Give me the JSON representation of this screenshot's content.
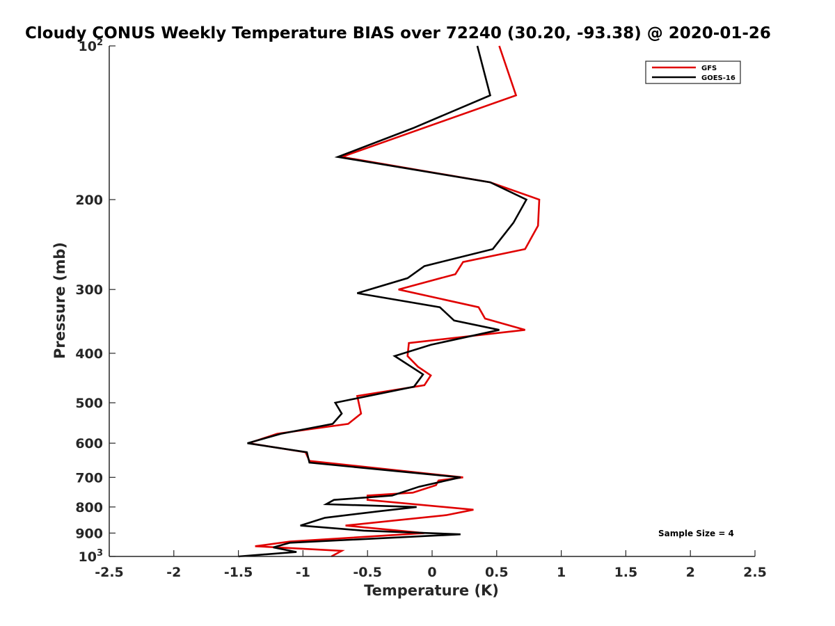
{
  "chart_data": {
    "type": "line",
    "title": "Cloudy CONUS Weekly Temperature BIAS over 72240 (30.20, -93.38) @ 2020-01-26",
    "xlabel": "Temperature (K)",
    "ylabel": "Pressure (mb)",
    "xlim": [
      -2.5,
      2.5
    ],
    "ylim": [
      100,
      1000
    ],
    "yscale": "log",
    "yreversed": true,
    "xticks": [
      -2.5,
      -2,
      -1.5,
      -1,
      -0.5,
      0,
      0.5,
      1,
      1.5,
      2,
      2.5
    ],
    "xtick_labels": [
      "-2.5",
      "-2",
      "-1.5",
      "-1",
      "-0.5",
      "0",
      "0.5",
      "1",
      "1.5",
      "2",
      "2.5"
    ],
    "yticks": [
      {
        "value": 100,
        "base": "10",
        "exp": "2"
      },
      {
        "value": 200,
        "label": "200"
      },
      {
        "value": 300,
        "label": "300"
      },
      {
        "value": 400,
        "label": "400"
      },
      {
        "value": 500,
        "label": "500"
      },
      {
        "value": 600,
        "label": "600"
      },
      {
        "value": 700,
        "label": "700"
      },
      {
        "value": 800,
        "label": "800"
      },
      {
        "value": 900,
        "label": "900"
      },
      {
        "value": 1000,
        "base": "10",
        "exp": "3"
      }
    ],
    "legend": {
      "position": "top-right",
      "entries": [
        "GFS",
        "GOES-16"
      ]
    },
    "annotation": "Sample Size = 4",
    "series": [
      {
        "name": "GFS",
        "color": "#e00000",
        "points": [
          {
            "x": 0.52,
            "p": 100
          },
          {
            "x": 0.65,
            "p": 125
          },
          {
            "x": -0.7,
            "p": 165
          },
          {
            "x": 0.45,
            "p": 185
          },
          {
            "x": 0.83,
            "p": 200
          },
          {
            "x": 0.82,
            "p": 225
          },
          {
            "x": 0.72,
            "p": 250
          },
          {
            "x": 0.24,
            "p": 265
          },
          {
            "x": 0.18,
            "p": 280
          },
          {
            "x": -0.26,
            "p": 300
          },
          {
            "x": 0.36,
            "p": 325
          },
          {
            "x": 0.41,
            "p": 342
          },
          {
            "x": 0.72,
            "p": 360
          },
          {
            "x": -0.18,
            "p": 382
          },
          {
            "x": -0.19,
            "p": 405
          },
          {
            "x": -0.11,
            "p": 425
          },
          {
            "x": -0.01,
            "p": 442
          },
          {
            "x": -0.06,
            "p": 462
          },
          {
            "x": -0.58,
            "p": 485
          },
          {
            "x": -0.55,
            "p": 525
          },
          {
            "x": -0.65,
            "p": 550
          },
          {
            "x": -1.2,
            "p": 575
          },
          {
            "x": -1.42,
            "p": 600
          },
          {
            "x": -0.98,
            "p": 625
          },
          {
            "x": -0.95,
            "p": 650
          },
          {
            "x": 0.24,
            "p": 700
          },
          {
            "x": 0.05,
            "p": 710
          },
          {
            "x": 0.03,
            "p": 725
          },
          {
            "x": -0.15,
            "p": 750
          },
          {
            "x": -0.5,
            "p": 760
          },
          {
            "x": -0.5,
            "p": 775
          },
          {
            "x": 0.32,
            "p": 810
          },
          {
            "x": 0.11,
            "p": 830
          },
          {
            "x": -0.67,
            "p": 870
          },
          {
            "x": -0.06,
            "p": 900
          },
          {
            "x": -1.1,
            "p": 935
          },
          {
            "x": -1.37,
            "p": 955
          },
          {
            "x": -0.7,
            "p": 975
          },
          {
            "x": -0.78,
            "p": 1000
          }
        ]
      },
      {
        "name": "GOES-16",
        "color": "#000000",
        "points": [
          {
            "x": 0.35,
            "p": 100
          },
          {
            "x": 0.45,
            "p": 125
          },
          {
            "x": -0.15,
            "p": 145
          },
          {
            "x": -0.73,
            "p": 165
          },
          {
            "x": 0.45,
            "p": 185
          },
          {
            "x": 0.73,
            "p": 200
          },
          {
            "x": 0.63,
            "p": 222
          },
          {
            "x": 0.47,
            "p": 250
          },
          {
            "x": -0.06,
            "p": 270
          },
          {
            "x": -0.19,
            "p": 285
          },
          {
            "x": -0.58,
            "p": 305
          },
          {
            "x": 0.06,
            "p": 325
          },
          {
            "x": 0.17,
            "p": 345
          },
          {
            "x": 0.52,
            "p": 360
          },
          {
            "x": -0.01,
            "p": 385
          },
          {
            "x": -0.29,
            "p": 405
          },
          {
            "x": -0.07,
            "p": 440
          },
          {
            "x": -0.14,
            "p": 465
          },
          {
            "x": -0.75,
            "p": 500
          },
          {
            "x": -0.7,
            "p": 525
          },
          {
            "x": -0.77,
            "p": 550
          },
          {
            "x": -1.17,
            "p": 575
          },
          {
            "x": -1.43,
            "p": 600
          },
          {
            "x": -0.97,
            "p": 625
          },
          {
            "x": -0.95,
            "p": 655
          },
          {
            "x": 0.22,
            "p": 700
          },
          {
            "x": -0.1,
            "p": 730
          },
          {
            "x": -0.31,
            "p": 760
          },
          {
            "x": -0.76,
            "p": 775
          },
          {
            "x": -0.82,
            "p": 790
          },
          {
            "x": -0.12,
            "p": 800
          },
          {
            "x": -0.4,
            "p": 815
          },
          {
            "x": -0.83,
            "p": 840
          },
          {
            "x": -1.02,
            "p": 870
          },
          {
            "x": -0.53,
            "p": 890
          },
          {
            "x": 0.22,
            "p": 905
          },
          {
            "x": -1.1,
            "p": 940
          },
          {
            "x": -1.23,
            "p": 960
          },
          {
            "x": -1.05,
            "p": 980
          },
          {
            "x": -1.5,
            "p": 1000
          }
        ]
      }
    ]
  }
}
